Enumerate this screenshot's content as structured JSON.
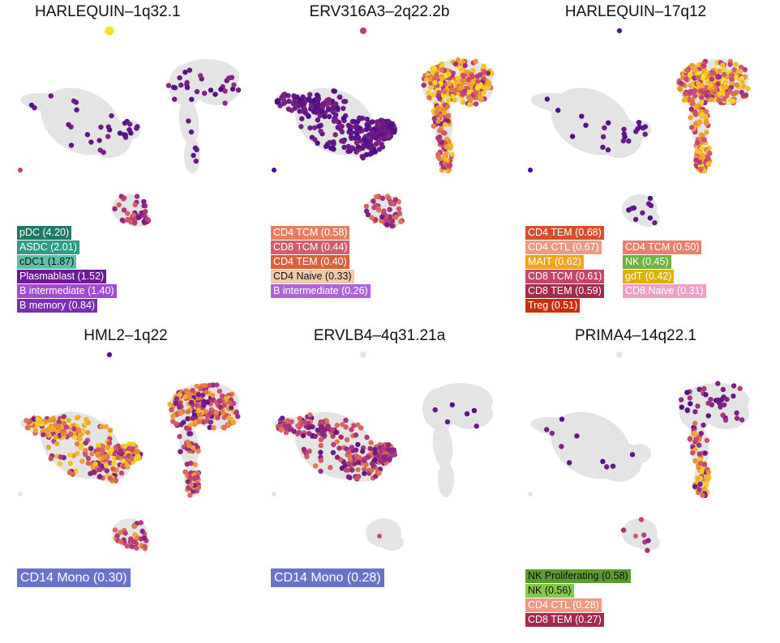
{
  "figure": {
    "colors": {
      "background_cells": "#e4e4e4",
      "low": "#4b0c8a",
      "mid": "#c8417b",
      "high": "#f0a32a",
      "max": "#f8e229"
    }
  },
  "chart_data": [
    {
      "type": "scatter",
      "title": "HARLEQUIN–1q32.1",
      "pattern": "sparse_left",
      "labels": [
        {
          "text": "pDC (4.20)",
          "color": "#1e7a66"
        },
        {
          "text": "ASDC (2.01)",
          "color": "#2f9a85"
        },
        {
          "text": "cDC1 (1.87)",
          "color": "#5cc3a8",
          "dark": true
        },
        {
          "text": "Plasmablast (1.52)",
          "color": "#6b1b9a"
        },
        {
          "text": "B intermediate (1.40)",
          "color": "#a24bd0"
        },
        {
          "text": "B memory (0.84)",
          "color": "#7b2fb0"
        }
      ]
    },
    {
      "type": "scatter",
      "title": "ERV316A3–2q22.2b",
      "pattern": "dense_all",
      "labels": [
        {
          "text": "CD4 TCM (0.58)",
          "color": "#e48060"
        },
        {
          "text": "CD8 TCM (0.44)",
          "color": "#cf5f6a"
        },
        {
          "text": "CD4 TEM (0.40)",
          "color": "#d9603a"
        },
        {
          "text": "CD4 Naive (0.33)",
          "color": "#f3c9a9",
          "dark": true
        },
        {
          "text": "B intermediate (0.26)",
          "color": "#b262d8"
        }
      ]
    },
    {
      "type": "scatter",
      "title": "HARLEQUIN–17q12",
      "pattern": "right_dense",
      "labels_col1": [
        {
          "text": "CD4 TEM (0.68)",
          "color": "#d2502c"
        },
        {
          "text": "CD4 CTL (0.67)",
          "color": "#ec9a80"
        },
        {
          "text": "MAIT (0.62)",
          "color": "#f2a31c"
        },
        {
          "text": "CD8 TCM (0.61)",
          "color": "#c4466a"
        },
        {
          "text": "CD8 TEM (0.59)",
          "color": "#a32a4a"
        },
        {
          "text": "Treg (0.51)",
          "color": "#c8300c"
        }
      ],
      "labels_col2": [
        {
          "text": "CD4 TCM (0.50)",
          "color": "#e8806a"
        },
        {
          "text": "NK (0.45)",
          "color": "#6db33f"
        },
        {
          "text": "gdT (0.42)",
          "color": "#e0b000"
        },
        {
          "text": "CD8 Naive (0.31)",
          "color": "#efa0c8"
        }
      ]
    },
    {
      "type": "scatter",
      "title": "HML2–1q22",
      "pattern": "dense_all_mono",
      "labels": [
        {
          "text": "CD14 Mono (0.30)",
          "color": "#6a72c9"
        }
      ]
    },
    {
      "type": "scatter",
      "title": "ERVLB4–4q31.21a",
      "pattern": "left_only",
      "labels": [
        {
          "text": "CD14 Mono (0.28)",
          "color": "#6a72c9"
        }
      ]
    },
    {
      "type": "scatter",
      "title": "PRIMA4–14q22.1",
      "pattern": "right_stem",
      "labels": [
        {
          "text": "NK Proliferating (0.58)",
          "color": "#5a9c2e",
          "dark": true
        },
        {
          "text": "NK (0.56)",
          "color": "#86c84a",
          "dark": true
        },
        {
          "text": "CD4 CTL (0.28)",
          "color": "#ec9a80"
        },
        {
          "text": "CD8 TEM (0.27)",
          "color": "#a32a4a"
        }
      ]
    }
  ]
}
